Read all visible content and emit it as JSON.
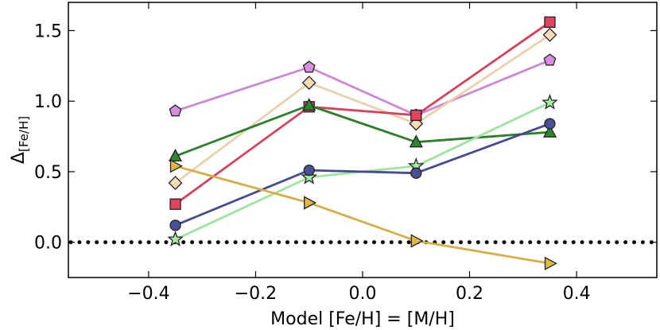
{
  "chart_data": {
    "type": "line",
    "title": "",
    "xlabel": "Model [Fe/H] = [M/H]",
    "ylabel_main": "Δ",
    "ylabel_sub": "[Fe/H]",
    "xlim": [
      -0.55,
      0.55
    ],
    "ylim": [
      -0.25,
      1.7
    ],
    "xticks": [
      -0.4,
      -0.2,
      0.0,
      0.2,
      0.4
    ],
    "xtick_labels": [
      "−0.4",
      "−0.2",
      "0.0",
      "0.2",
      "0.4"
    ],
    "yticks": [
      0.0,
      0.5,
      1.0,
      1.5
    ],
    "ytick_labels": [
      "0.0",
      "0.5",
      "1.0",
      "1.5"
    ],
    "grid": false,
    "legend": "none",
    "x": [
      -0.35,
      -0.1,
      0.1,
      0.35
    ],
    "reference_line": {
      "y": 0.0,
      "style": "dotted",
      "color": "#000000"
    },
    "series": [
      {
        "name": "pentagon",
        "marker": "pentagon",
        "color": "#d98ee0",
        "values": [
          0.93,
          1.24,
          0.9,
          1.29
        ]
      },
      {
        "name": "diamond",
        "marker": "diamond",
        "color": "#f6dcb6",
        "values": [
          0.42,
          1.13,
          0.84,
          1.47
        ]
      },
      {
        "name": "square",
        "marker": "square",
        "color": "#e0445f",
        "values": [
          0.27,
          0.96,
          0.9,
          1.56
        ]
      },
      {
        "name": "triangle-up",
        "marker": "triangle-up",
        "color": "#2f862f",
        "values": [
          0.61,
          0.97,
          0.71,
          0.78
        ]
      },
      {
        "name": "star",
        "marker": "star",
        "color": "#a6f0a6",
        "values": [
          0.02,
          0.46,
          0.54,
          0.99
        ]
      },
      {
        "name": "circle",
        "marker": "circle",
        "color": "#4a4f96",
        "values": [
          0.12,
          0.51,
          0.49,
          0.84
        ]
      },
      {
        "name": "triangle-right",
        "marker": "triangle-right",
        "color": "#e0b84a",
        "values": [
          0.54,
          0.28,
          0.01,
          -0.15
        ]
      }
    ]
  }
}
